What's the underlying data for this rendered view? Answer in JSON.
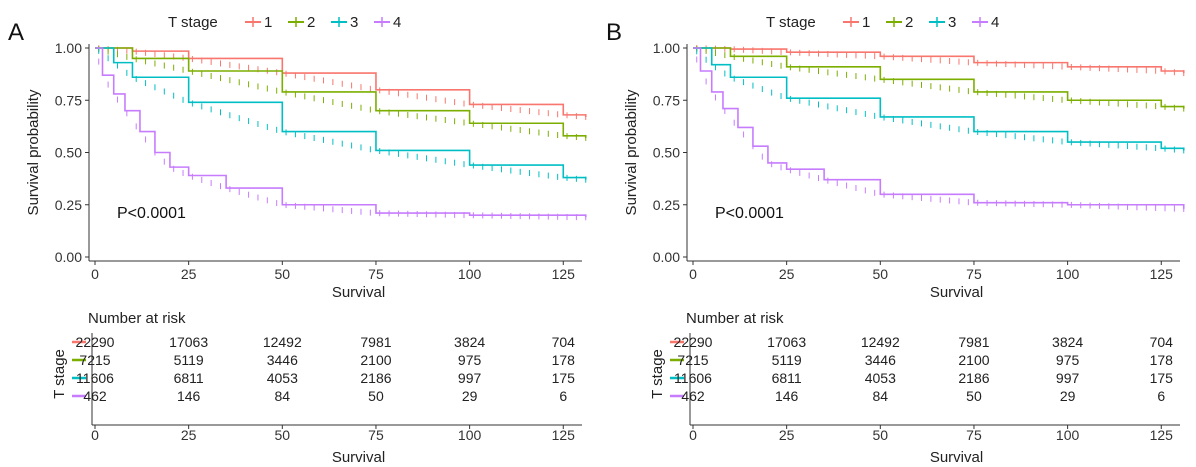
{
  "colors": {
    "t1": "#F8766D",
    "t2": "#7CAE00",
    "t3": "#00BFC4",
    "t4": "#C77CFF",
    "axis": "#333333"
  },
  "chart_data": [
    {
      "type": "line",
      "panel_label": "A",
      "legend_title": "T stage",
      "legend_position": "top",
      "xlabel": "Survival",
      "ylabel": "Survival probability",
      "xlim": [
        0,
        130
      ],
      "ylim": [
        0,
        1
      ],
      "x_ticks": [
        0,
        25,
        50,
        75,
        100,
        125
      ],
      "y_ticks": [
        "0.00",
        "0.25",
        "0.50",
        "0.75",
        "1.00"
      ],
      "grid": false,
      "annotation": "P<0.0001",
      "series": [
        {
          "name": "1",
          "color": "#F8766D",
          "x": [
            0,
            10,
            25,
            50,
            75,
            100,
            125,
            131
          ],
          "y": [
            1.0,
            0.985,
            0.95,
            0.88,
            0.8,
            0.73,
            0.68,
            0.67
          ]
        },
        {
          "name": "2",
          "color": "#7CAE00",
          "x": [
            0,
            10,
            25,
            50,
            75,
            100,
            125,
            131
          ],
          "y": [
            1.0,
            0.95,
            0.89,
            0.79,
            0.7,
            0.64,
            0.58,
            0.57
          ]
        },
        {
          "name": "3",
          "color": "#00BFC4",
          "x": [
            0,
            5,
            10,
            25,
            50,
            75,
            100,
            125,
            131
          ],
          "y": [
            1.0,
            0.93,
            0.86,
            0.74,
            0.6,
            0.51,
            0.44,
            0.38,
            0.37
          ]
        },
        {
          "name": "4",
          "color": "#C77CFF",
          "x": [
            0,
            2,
            5,
            8,
            12,
            16,
            20,
            25,
            35,
            50,
            75,
            100,
            131
          ],
          "y": [
            1.0,
            0.87,
            0.78,
            0.7,
            0.6,
            0.5,
            0.43,
            0.39,
            0.33,
            0.25,
            0.21,
            0.2,
            0.19
          ]
        }
      ],
      "risk_table": {
        "title": "Number at risk",
        "ylabel": "T stage",
        "xlabel": "Survival",
        "x_ticks": [
          0,
          25,
          50,
          75,
          100,
          125
        ],
        "rows": [
          {
            "name": "1",
            "color": "#F8766D",
            "values": [
              "22290",
              "17063",
              "12492",
              "7981",
              "3824",
              "704"
            ]
          },
          {
            "name": "2",
            "color": "#7CAE00",
            "values": [
              "7215",
              "5119",
              "3446",
              "2100",
              "975",
              "178"
            ]
          },
          {
            "name": "3",
            "color": "#00BFC4",
            "values": [
              "11606",
              "6811",
              "4053",
              "2186",
              "997",
              "175"
            ]
          },
          {
            "name": "4",
            "color": "#C77CFF",
            "values": [
              "462",
              "146",
              "84",
              "50",
              "29",
              "6"
            ]
          }
        ]
      }
    },
    {
      "type": "line",
      "panel_label": "B",
      "legend_title": "T stage",
      "legend_position": "top",
      "xlabel": "Survival",
      "ylabel": "Survival probability",
      "xlim": [
        0,
        130
      ],
      "ylim": [
        0,
        1
      ],
      "x_ticks": [
        0,
        25,
        50,
        75,
        100,
        125
      ],
      "y_ticks": [
        "0.00",
        "0.25",
        "0.50",
        "0.75",
        "1.00"
      ],
      "grid": false,
      "annotation": "P<0.0001",
      "series": [
        {
          "name": "1",
          "color": "#F8766D",
          "x": [
            0,
            10,
            25,
            50,
            75,
            100,
            125,
            131
          ],
          "y": [
            1.0,
            0.995,
            0.98,
            0.96,
            0.93,
            0.91,
            0.89,
            0.88
          ]
        },
        {
          "name": "2",
          "color": "#7CAE00",
          "x": [
            0,
            10,
            25,
            50,
            75,
            100,
            125,
            131
          ],
          "y": [
            1.0,
            0.96,
            0.91,
            0.85,
            0.79,
            0.75,
            0.72,
            0.71
          ]
        },
        {
          "name": "3",
          "color": "#00BFC4",
          "x": [
            0,
            5,
            10,
            25,
            50,
            75,
            100,
            125,
            131
          ],
          "y": [
            1.0,
            0.92,
            0.86,
            0.76,
            0.67,
            0.6,
            0.55,
            0.52,
            0.51
          ]
        },
        {
          "name": "4",
          "color": "#C77CFF",
          "x": [
            0,
            2,
            5,
            8,
            12,
            16,
            20,
            25,
            35,
            50,
            75,
            100,
            131
          ],
          "y": [
            1.0,
            0.89,
            0.79,
            0.71,
            0.62,
            0.53,
            0.45,
            0.42,
            0.37,
            0.3,
            0.26,
            0.25,
            0.23
          ]
        }
      ],
      "risk_table": {
        "title": "Number at risk",
        "ylabel": "T stage",
        "xlabel": "Survival",
        "x_ticks": [
          0,
          25,
          50,
          75,
          100,
          125
        ],
        "rows": [
          {
            "name": "1",
            "color": "#F8766D",
            "values": [
              "22290",
              "17063",
              "12492",
              "7981",
              "3824",
              "704"
            ]
          },
          {
            "name": "2",
            "color": "#7CAE00",
            "values": [
              "7215",
              "5119",
              "3446",
              "2100",
              "975",
              "178"
            ]
          },
          {
            "name": "3",
            "color": "#00BFC4",
            "values": [
              "11606",
              "6811",
              "4053",
              "2186",
              "997",
              "175"
            ]
          },
          {
            "name": "4",
            "color": "#C77CFF",
            "values": [
              "462",
              "146",
              "84",
              "50",
              "29",
              "6"
            ]
          }
        ]
      }
    }
  ]
}
